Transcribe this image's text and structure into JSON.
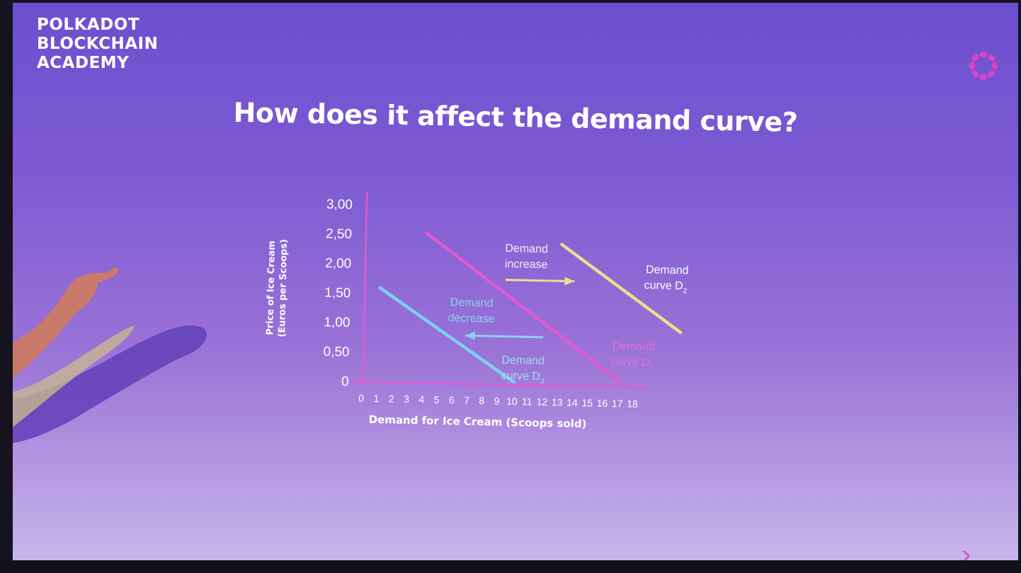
{
  "brand": {
    "lines": [
      "POLKADOT",
      "BLOCKCHAIN",
      "ACADEMY"
    ],
    "logo_icon": "polkadot-ring-icon",
    "accent": "#e040c8"
  },
  "slide": {
    "title": "How does it affect the demand curve?"
  },
  "nav": {
    "prev": "‹",
    "next": "›"
  },
  "chart_data": {
    "type": "line",
    "xlabel": "Demand for Ice Cream (Scoops sold)",
    "ylabel_lines": [
      "Price of Ice Cream",
      "(Euros per Scoops)"
    ],
    "x_ticks": [
      "0",
      "1",
      "2",
      "3",
      "4",
      "5",
      "6",
      "7",
      "8",
      "9",
      "10",
      "11",
      "12",
      "13",
      "14",
      "15",
      "16",
      "17",
      "18"
    ],
    "y_ticks": [
      "0",
      "0,50",
      "1,00",
      "1,50",
      "2,00",
      "2,50",
      "3,00"
    ],
    "xlim": [
      0,
      18
    ],
    "ylim": [
      0,
      3
    ],
    "series": [
      {
        "name": "Demand curve D3",
        "color": "#7ed0f2",
        "x": [
          1,
          10
        ],
        "y": [
          1.6,
          0.05
        ]
      },
      {
        "name": "Demand curve D1",
        "color": "#e05ad0",
        "x": [
          4,
          17
        ],
        "y": [
          2.55,
          0.1
        ]
      },
      {
        "name": "Demand curve D2",
        "color": "#eedc8c",
        "x": [
          13,
          21
        ],
        "y": [
          2.4,
          0.95
        ]
      }
    ],
    "annotations": {
      "increase": {
        "lines": [
          "Demand",
          "increase"
        ],
        "color": "#f2f0ff",
        "arrow_color": "#eedc8c",
        "from": [
          9.3,
          1.78
        ],
        "to": [
          13.9,
          1.78
        ]
      },
      "decrease": {
        "lines": [
          "Demand",
          "decrease"
        ],
        "color": "#8ccff0",
        "arrow_color": "#8ccff0",
        "from": [
          11.9,
          0.82
        ],
        "to": [
          6.7,
          0.82
        ]
      },
      "label_d3": {
        "line1": "Demand",
        "line2": "curve D",
        "sub": "3",
        "color": "#9fd8f4"
      },
      "label_d1": {
        "line1": "Demand",
        "line2": "curve D",
        "sub": "1",
        "color": "#e070d8"
      },
      "label_d2": {
        "line1": "Demand",
        "line2": "curve D",
        "sub": "2",
        "color": "#ffffff"
      }
    }
  }
}
